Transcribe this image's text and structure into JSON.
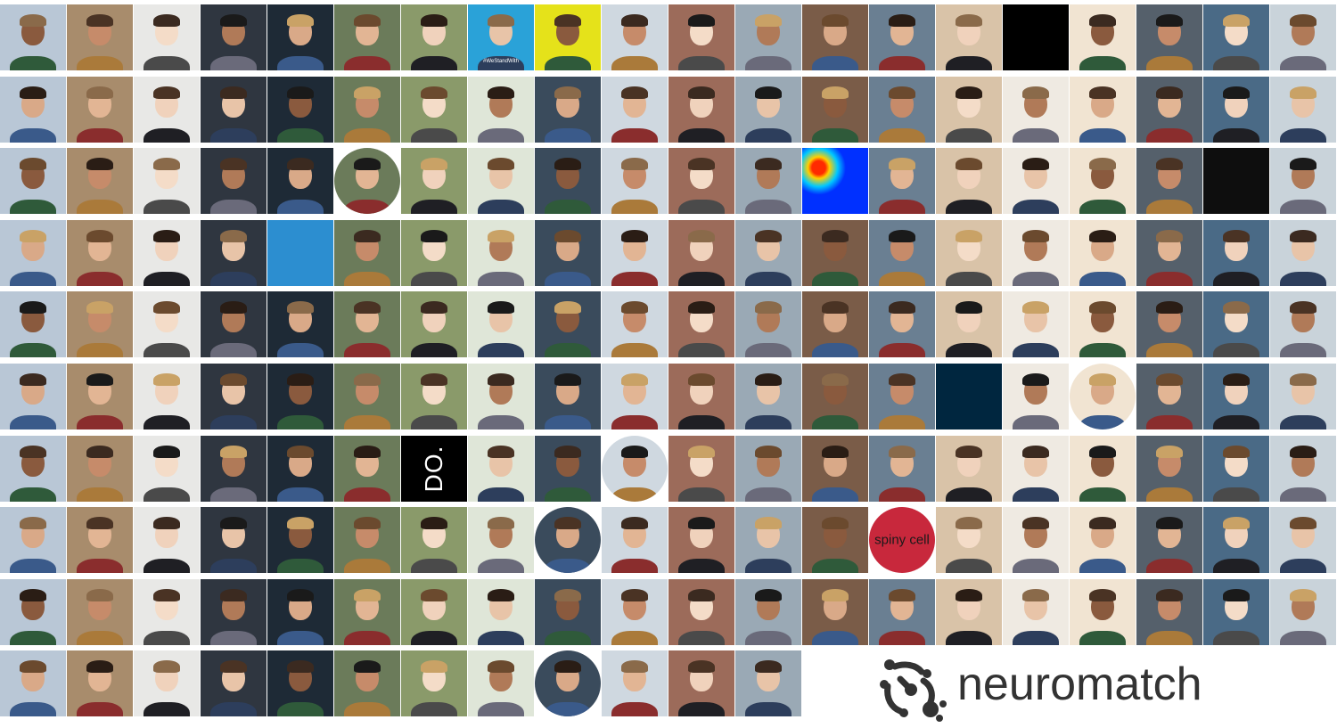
{
  "brand": {
    "name": "neuromatch",
    "logo_icon": "neuron-icon",
    "text_color": "#333333"
  },
  "mosaic": {
    "columns": 20,
    "rows": 10,
    "last_row_tiles": 12,
    "content": "photo-portrait-grid",
    "tile_labels": [
      {
        "tile": 127,
        "text": "DO."
      },
      {
        "tile": 154,
        "text": "spiny cell"
      },
      {
        "tile": 8,
        "text": "#WeStandWith"
      }
    ]
  }
}
